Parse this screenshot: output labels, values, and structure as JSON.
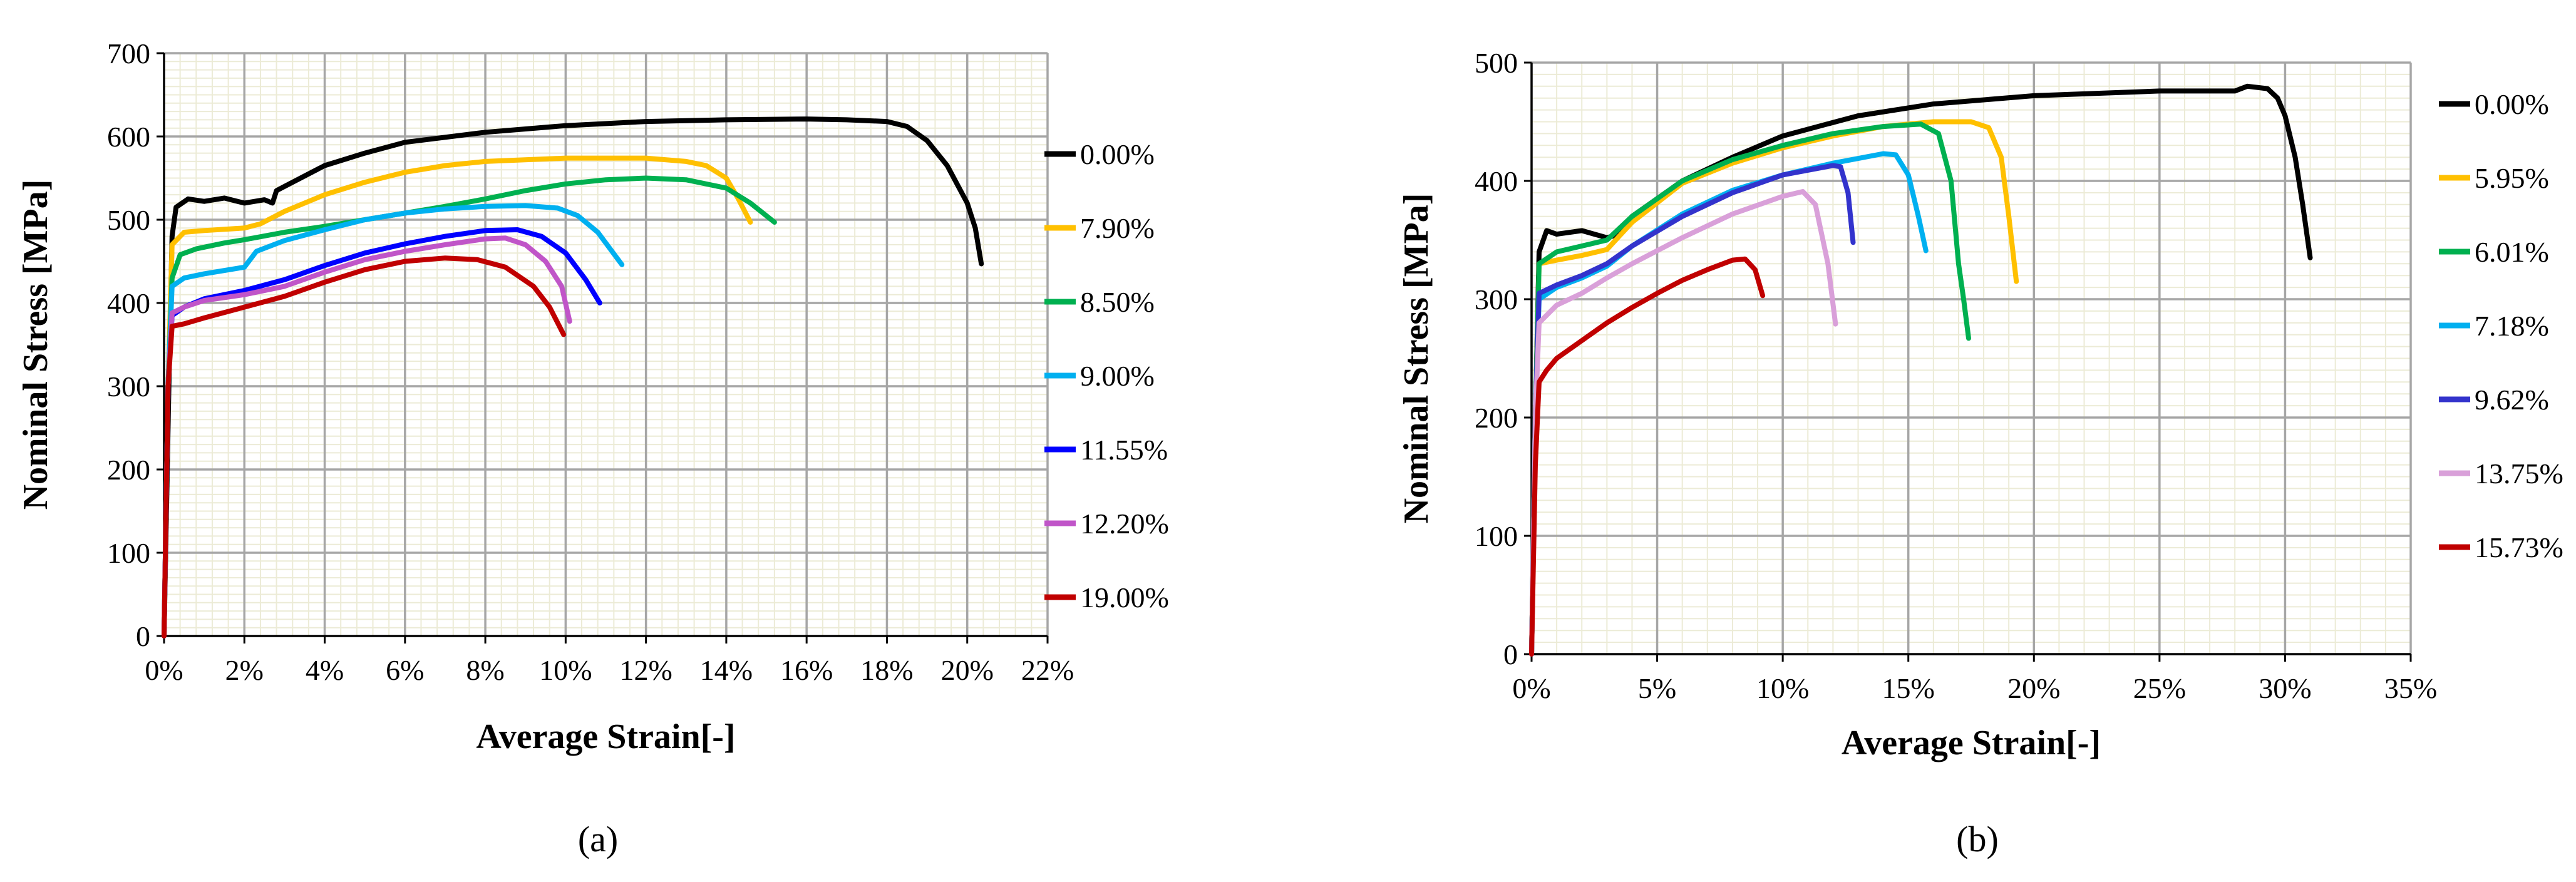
{
  "chart_data": [
    {
      "type": "line",
      "panel_label": "(a)",
      "xlabel": "Average Strain[-]",
      "ylabel": "Nominal Stress [MPa]",
      "xlim": [
        0,
        22
      ],
      "ylim": [
        0,
        700
      ],
      "x_unit": "%",
      "x_ticks": [
        0,
        2,
        4,
        6,
        8,
        10,
        12,
        14,
        16,
        18,
        20,
        22
      ],
      "x_tick_labels": [
        "0%",
        "2%",
        "4%",
        "6%",
        "8%",
        "10%",
        "12%",
        "14%",
        "16%",
        "18%",
        "20%",
        "22%"
      ],
      "y_ticks": [
        0,
        100,
        200,
        300,
        400,
        500,
        600,
        700
      ],
      "y_tick_labels": [
        "0",
        "100",
        "200",
        "300",
        "400",
        "500",
        "600",
        "700"
      ],
      "grid": true,
      "minor_grid": true,
      "legend_position": "right",
      "series": [
        {
          "name": "0.00%",
          "color": "#000000",
          "x": [
            0,
            0.12,
            0.2,
            0.3,
            0.6,
            1.0,
            1.5,
            2.0,
            2.5,
            2.7,
            2.8,
            3,
            4,
            5,
            6,
            8,
            10,
            12,
            14,
            16,
            17,
            18,
            18.5,
            19,
            19.5,
            20,
            20.2,
            20.35
          ],
          "y": [
            0,
            300,
            480,
            515,
            525,
            522,
            526,
            520,
            524,
            520,
            535,
            540,
            565,
            580,
            593,
            605,
            613,
            618,
            620,
            621,
            620,
            618,
            612,
            595,
            565,
            520,
            490,
            447
          ]
        },
        {
          "name": "7.90%",
          "color": "#FFC000",
          "x": [
            0,
            0.1,
            0.2,
            0.5,
            1.0,
            2.0,
            2.4,
            3,
            4,
            5,
            6,
            7,
            8,
            10,
            12,
            13,
            13.5,
            14,
            14.3,
            14.6
          ],
          "y": [
            0,
            300,
            470,
            485,
            487,
            490,
            495,
            510,
            530,
            545,
            557,
            565,
            570,
            574,
            574,
            570,
            565,
            550,
            525,
            497
          ]
        },
        {
          "name": "8.50%",
          "color": "#00B050",
          "x": [
            0,
            0.1,
            0.2,
            0.4,
            0.8,
            1.5,
            2.0,
            3,
            4,
            5,
            6,
            7,
            8,
            9,
            10,
            11,
            12,
            13,
            14,
            14.6,
            15.2
          ],
          "y": [
            0,
            300,
            430,
            458,
            465,
            472,
            476,
            485,
            492,
            500,
            508,
            516,
            525,
            535,
            543,
            548,
            550,
            548,
            538,
            520,
            497
          ]
        },
        {
          "name": "9.00%",
          "color": "#00B0F0",
          "x": [
            0,
            0.1,
            0.2,
            0.5,
            1.0,
            2.0,
            2.3,
            3,
            4,
            5,
            6,
            7,
            8,
            9,
            9.8,
            10.3,
            10.8,
            11.4
          ],
          "y": [
            0,
            300,
            420,
            430,
            435,
            443,
            462,
            475,
            488,
            500,
            508,
            513,
            516,
            517,
            514,
            505,
            485,
            446
          ]
        },
        {
          "name": "11.55%",
          "color": "#0000FF",
          "x": [
            0,
            0.1,
            0.2,
            0.5,
            1.0,
            2.0,
            3,
            4,
            5,
            6,
            7,
            8,
            8.8,
            9.4,
            10.0,
            10.5,
            10.85
          ],
          "y": [
            0,
            300,
            385,
            395,
            405,
            415,
            428,
            445,
            460,
            471,
            480,
            487,
            488,
            480,
            460,
            428,
            400
          ]
        },
        {
          "name": "12.20%",
          "color": "#C055C8",
          "x": [
            0,
            0.1,
            0.2,
            0.5,
            1.0,
            2.0,
            3,
            4,
            5,
            6,
            7,
            8,
            8.5,
            9.0,
            9.5,
            9.9,
            10.1
          ],
          "y": [
            0,
            300,
            388,
            395,
            403,
            410,
            420,
            437,
            452,
            462,
            470,
            477,
            478,
            470,
            450,
            420,
            378
          ]
        },
        {
          "name": "19.00%",
          "color": "#C00000",
          "x": [
            0,
            0.1,
            0.2,
            0.5,
            1.0,
            2.0,
            3,
            4,
            5,
            6,
            7,
            7.8,
            8.5,
            9.2,
            9.6,
            9.95
          ],
          "y": [
            0,
            300,
            372,
            375,
            382,
            395,
            408,
            425,
            440,
            450,
            454,
            452,
            443,
            420,
            395,
            362
          ]
        }
      ]
    },
    {
      "type": "line",
      "panel_label": "(b)",
      "xlabel": "Average Strain[-]",
      "ylabel": "Nominal Stress [MPa]",
      "xlim": [
        0,
        35
      ],
      "ylim": [
        0,
        500
      ],
      "x_unit": "%",
      "x_ticks": [
        0,
        5,
        10,
        15,
        20,
        25,
        30,
        35
      ],
      "x_tick_labels": [
        "0%",
        "5%",
        "10%",
        "15%",
        "20%",
        "25%",
        "30%",
        "35%"
      ],
      "y_ticks": [
        0,
        100,
        200,
        300,
        400,
        500
      ],
      "y_tick_labels": [
        "0",
        "100",
        "200",
        "300",
        "400",
        "500"
      ],
      "grid": true,
      "minor_grid": true,
      "legend_position": "right",
      "series": [
        {
          "name": "0.00%",
          "color": "#000000",
          "x": [
            0,
            0.15,
            0.3,
            0.6,
            1.0,
            2.0,
            3.0,
            3.5,
            4,
            6,
            8,
            10,
            13,
            16,
            20,
            25,
            28,
            28.5,
            29.3,
            29.7,
            30.0,
            30.4,
            30.7,
            31.0
          ],
          "y": [
            0,
            200,
            340,
            358,
            355,
            358,
            352,
            355,
            370,
            400,
            420,
            438,
            455,
            465,
            472,
            476,
            476,
            480,
            478,
            470,
            455,
            420,
            380,
            335
          ]
        },
        {
          "name": "5.95%",
          "color": "#FFC000",
          "x": [
            0,
            0.15,
            0.3,
            1.0,
            2.0,
            3.0,
            4,
            6,
            8,
            10,
            12,
            14,
            16,
            17.5,
            18.2,
            18.7,
            19.0,
            19.3
          ],
          "y": [
            0,
            200,
            330,
            333,
            337,
            342,
            365,
            398,
            415,
            428,
            438,
            446,
            450,
            450,
            445,
            420,
            370,
            315
          ]
        },
        {
          "name": "6.01%",
          "color": "#00B050",
          "x": [
            0,
            0.15,
            0.3,
            1.0,
            2.0,
            3.0,
            4,
            6,
            8,
            10,
            12,
            14,
            15.5,
            16.2,
            16.7,
            17.0,
            17.2,
            17.4
          ],
          "y": [
            0,
            200,
            330,
            340,
            345,
            350,
            370,
            400,
            418,
            430,
            440,
            446,
            448,
            440,
            400,
            330,
            300,
            267
          ]
        },
        {
          "name": "7.18%",
          "color": "#00B0F0",
          "x": [
            0,
            0.15,
            0.3,
            1.0,
            2.0,
            3.0,
            4,
            6,
            8,
            10,
            12,
            14,
            14.5,
            15.0,
            15.4,
            15.7
          ],
          "y": [
            0,
            200,
            300,
            310,
            318,
            328,
            345,
            372,
            392,
            405,
            415,
            423,
            422,
            405,
            370,
            341
          ]
        },
        {
          "name": "9.62%",
          "color": "#3333CC",
          "x": [
            0,
            0.15,
            0.3,
            1.0,
            2.0,
            3.0,
            4,
            6,
            8,
            10,
            12,
            12.3,
            12.6,
            12.8
          ],
          "y": [
            0,
            200,
            305,
            312,
            320,
            330,
            345,
            370,
            390,
            405,
            413,
            412,
            390,
            348
          ]
        },
        {
          "name": "13.75%",
          "color": "#D9A0D9",
          "x": [
            0,
            0.15,
            0.3,
            1.0,
            2.0,
            3.0,
            4,
            6,
            8,
            10,
            10.8,
            11.3,
            11.8,
            12.1
          ],
          "y": [
            0,
            200,
            280,
            295,
            305,
            318,
            330,
            352,
            372,
            387,
            391,
            380,
            330,
            279
          ]
        },
        {
          "name": "15.73%",
          "color": "#C00000",
          "x": [
            0,
            0.15,
            0.3,
            0.6,
            1.0,
            2.0,
            3.0,
            4,
            5,
            6,
            7,
            8,
            8.5,
            8.9,
            9.2
          ],
          "y": [
            0,
            160,
            230,
            240,
            250,
            265,
            280,
            293,
            305,
            316,
            325,
            333,
            334,
            325,
            303
          ]
        }
      ]
    }
  ]
}
